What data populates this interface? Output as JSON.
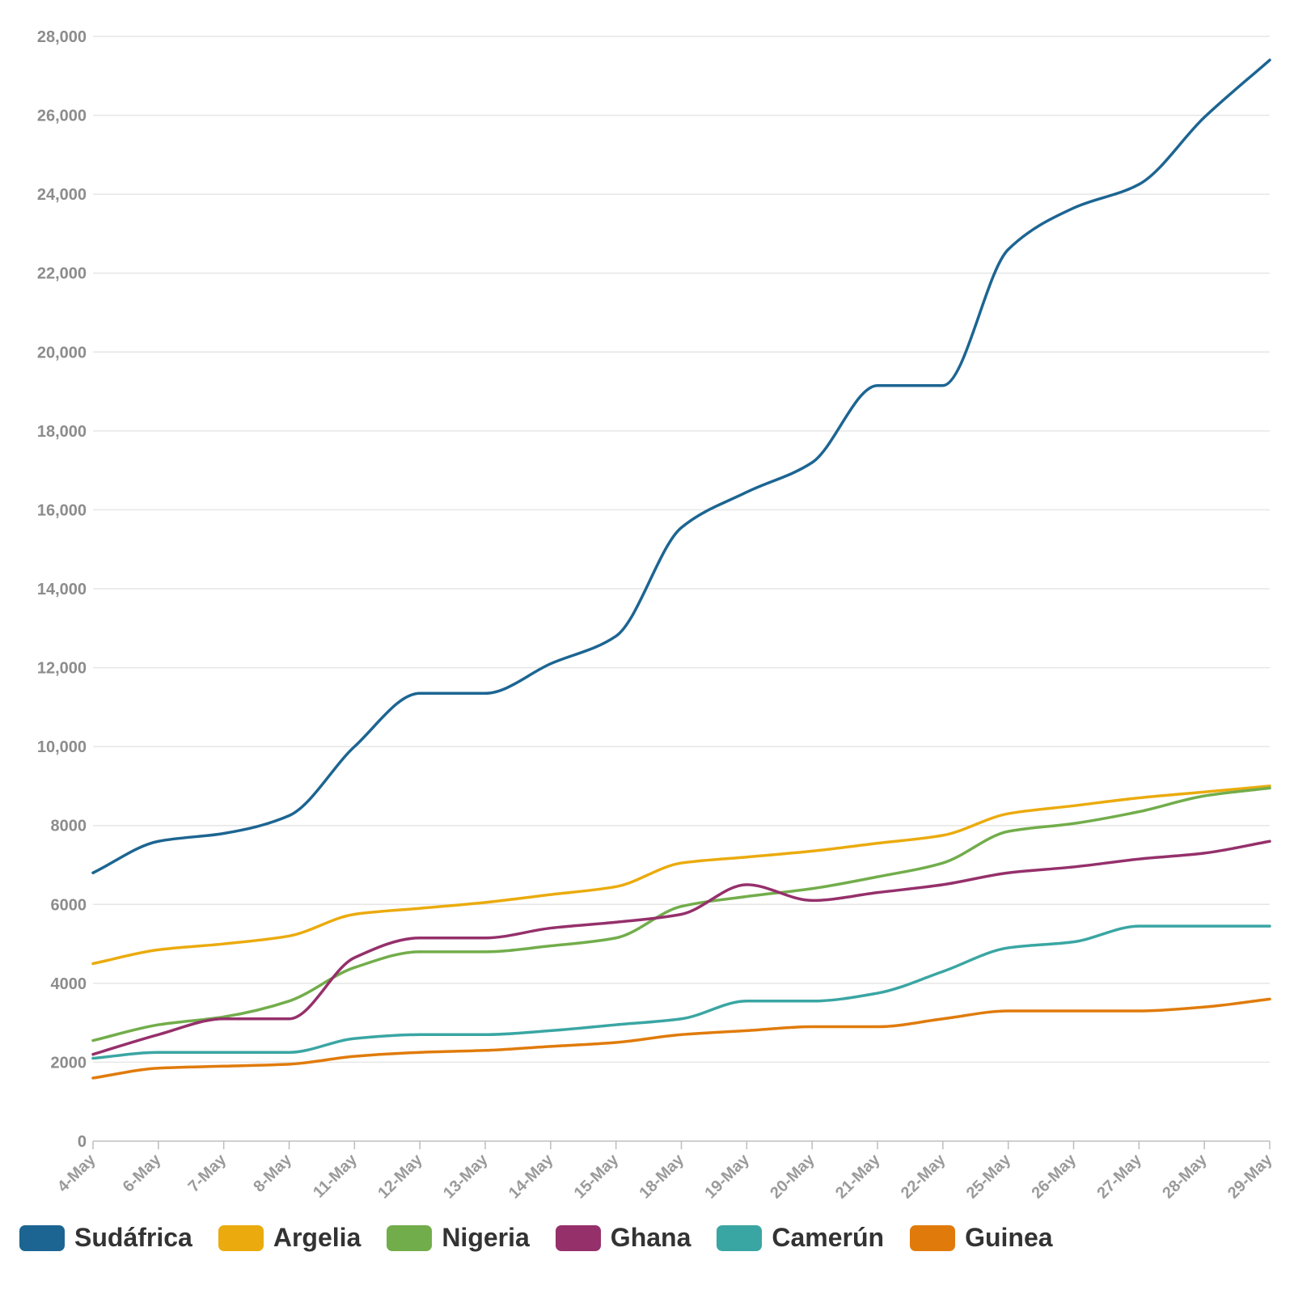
{
  "colors": {
    "grid": "#e6e6e6",
    "tick_text": "#8c8c8c",
    "legend_text": "#333333"
  },
  "chart_data": {
    "type": "line",
    "title": "",
    "xlabel": "",
    "ylabel": "",
    "ylim": [
      0,
      28000
    ],
    "yticks": [
      0,
      2000,
      4000,
      6000,
      8000,
      10000,
      12000,
      14000,
      16000,
      18000,
      20000,
      22000,
      24000,
      26000,
      28000
    ],
    "ytick_labels": [
      "0",
      "2000",
      "4000",
      "6000",
      "8000",
      "10,000",
      "12,000",
      "14,000",
      "16,000",
      "18,000",
      "20,000",
      "22,000",
      "24,000",
      "26,000",
      "28,000"
    ],
    "grid": true,
    "legend_position": "bottom",
    "categories": [
      "4-May",
      "6-May",
      "7-May",
      "8-May",
      "11-May",
      "12-May",
      "13-May",
      "14-May",
      "15-May",
      "18-May",
      "19-May",
      "20-May",
      "21-May",
      "22-May",
      "25-May",
      "26-May",
      "27-May",
      "28-May",
      "29-May"
    ],
    "series": [
      {
        "name": "Sudáfrica",
        "color": "#1c6592",
        "values": [
          6800,
          7600,
          7800,
          8250,
          10000,
          11350,
          11350,
          12100,
          12800,
          15550,
          16450,
          17200,
          19150,
          19150,
          22600,
          23650,
          24250,
          25950,
          27400
        ]
      },
      {
        "name": "Argelia",
        "color": "#ebab0e",
        "values": [
          4500,
          4850,
          5000,
          5200,
          5750,
          5900,
          6050,
          6250,
          6450,
          7050,
          7200,
          7350,
          7550,
          7750,
          8300,
          8500,
          8700,
          8850,
          9000
        ]
      },
      {
        "name": "Nigeria",
        "color": "#72ad4b",
        "values": [
          2550,
          2950,
          3150,
          3550,
          4400,
          4800,
          4800,
          4950,
          5150,
          5950,
          6200,
          6400,
          6700,
          7050,
          7850,
          8050,
          8350,
          8750,
          8950
        ]
      },
      {
        "name": "Ghana",
        "color": "#95306b",
        "values": [
          2200,
          2700,
          3100,
          3100,
          4650,
          5150,
          5150,
          5400,
          5550,
          5750,
          6500,
          6100,
          6300,
          6500,
          6800,
          6950,
          7150,
          7300,
          7600
        ]
      },
      {
        "name": "Camerún",
        "color": "#3aa6a3",
        "values": [
          2100,
          2250,
          2250,
          2250,
          2600,
          2700,
          2700,
          2800,
          2950,
          3100,
          3550,
          3550,
          3750,
          4300,
          4900,
          5050,
          5450,
          5450,
          5450
        ]
      },
      {
        "name": "Guinea",
        "color": "#e07b0b",
        "values": [
          1600,
          1850,
          1900,
          1950,
          2150,
          2250,
          2300,
          2400,
          2500,
          2700,
          2800,
          2900,
          2900,
          3100,
          3300,
          3300,
          3300,
          3400,
          3600
        ]
      }
    ]
  }
}
